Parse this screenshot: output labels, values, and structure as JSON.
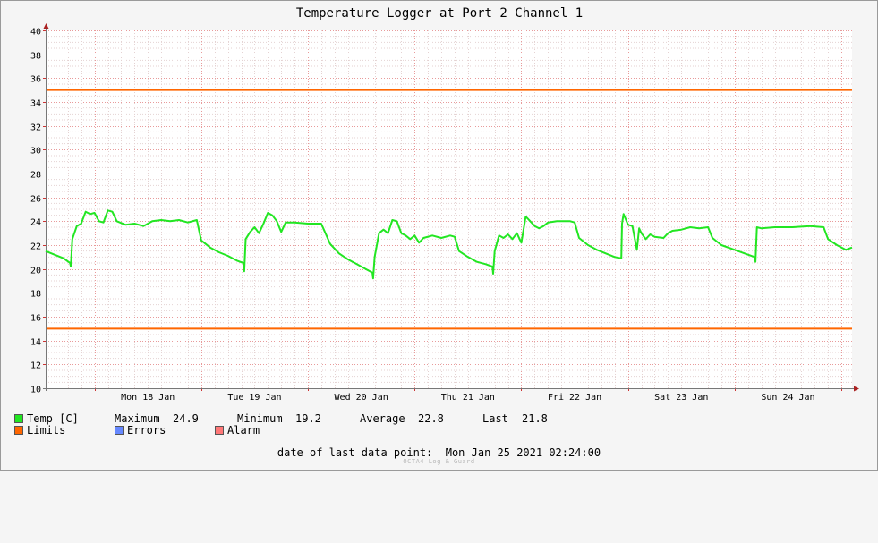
{
  "chart_data": {
    "type": "line",
    "title": "Temperature Logger at Port 2 Channel 1",
    "ylim": [
      10,
      40
    ],
    "yticks": [
      10,
      12,
      14,
      16,
      18,
      20,
      22,
      24,
      26,
      28,
      30,
      32,
      34,
      36,
      38,
      40
    ],
    "xlim": [
      "2021-01-17 13:00",
      "2021-01-25 02:24"
    ],
    "xticks": [
      {
        "label": "Mon 18 Jan",
        "t": "2021-01-18 12:00"
      },
      {
        "label": "Tue 19 Jan",
        "t": "2021-01-19 12:00"
      },
      {
        "label": "Wed 20 Jan",
        "t": "2021-01-20 12:00"
      },
      {
        "label": "Thu 21 Jan",
        "t": "2021-01-21 12:00"
      },
      {
        "label": "Fri 22 Jan",
        "t": "2021-01-22 12:00"
      },
      {
        "label": "Sat 23 Jan",
        "t": "2021-01-23 12:00"
      },
      {
        "label": "Sun 24 Jan",
        "t": "2021-01-24 12:00"
      }
    ],
    "grid": true,
    "limits": {
      "upper": 35,
      "lower": 15
    },
    "series": [
      {
        "name": "Temp [C]",
        "color": "#22e622",
        "points": [
          [
            "2021-01-17 13:00",
            21.5
          ],
          [
            "2021-01-17 15:00",
            21.2
          ],
          [
            "2021-01-17 17:00",
            20.9
          ],
          [
            "2021-01-17 18:30",
            20.5
          ],
          [
            "2021-01-17 18:40",
            20.2
          ],
          [
            "2021-01-17 19:00",
            22.5
          ],
          [
            "2021-01-17 20:00",
            23.6
          ],
          [
            "2021-01-17 21:00",
            23.8
          ],
          [
            "2021-01-17 22:00",
            24.8
          ],
          [
            "2021-01-17 23:00",
            24.6
          ],
          [
            "2021-01-18 00:00",
            24.7
          ],
          [
            "2021-01-18 01:00",
            24.0
          ],
          [
            "2021-01-18 02:00",
            23.9
          ],
          [
            "2021-01-18 03:00",
            24.9
          ],
          [
            "2021-01-18 04:00",
            24.8
          ],
          [
            "2021-01-18 05:00",
            24.0
          ],
          [
            "2021-01-18 07:00",
            23.7
          ],
          [
            "2021-01-18 09:00",
            23.8
          ],
          [
            "2021-01-18 11:00",
            23.6
          ],
          [
            "2021-01-18 13:00",
            24.0
          ],
          [
            "2021-01-18 15:00",
            24.1
          ],
          [
            "2021-01-18 17:00",
            24.0
          ],
          [
            "2021-01-18 19:00",
            24.1
          ],
          [
            "2021-01-18 21:00",
            23.9
          ],
          [
            "2021-01-18 23:00",
            24.1
          ],
          [
            "2021-01-19 00:00",
            22.4
          ],
          [
            "2021-01-19 02:00",
            21.8
          ],
          [
            "2021-01-19 04:00",
            21.4
          ],
          [
            "2021-01-19 06:00",
            21.1
          ],
          [
            "2021-01-19 08:00",
            20.7
          ],
          [
            "2021-01-19 09:30",
            20.5
          ],
          [
            "2021-01-19 09:40",
            19.8
          ],
          [
            "2021-01-19 10:00",
            22.5
          ],
          [
            "2021-01-19 11:00",
            23.1
          ],
          [
            "2021-01-19 12:00",
            23.5
          ],
          [
            "2021-01-19 13:00",
            23.0
          ],
          [
            "2021-01-19 14:00",
            23.8
          ],
          [
            "2021-01-19 15:00",
            24.7
          ],
          [
            "2021-01-19 16:00",
            24.5
          ],
          [
            "2021-01-19 17:00",
            24.0
          ],
          [
            "2021-01-19 18:00",
            23.1
          ],
          [
            "2021-01-19 19:00",
            23.9
          ],
          [
            "2021-01-19 21:00",
            23.9
          ],
          [
            "2021-01-20 00:00",
            23.8
          ],
          [
            "2021-01-20 03:00",
            23.8
          ],
          [
            "2021-01-20 05:00",
            22.1
          ],
          [
            "2021-01-20 07:00",
            21.3
          ],
          [
            "2021-01-20 09:00",
            20.8
          ],
          [
            "2021-01-20 11:00",
            20.4
          ],
          [
            "2021-01-20 13:00",
            20.0
          ],
          [
            "2021-01-20 14:30",
            19.7
          ],
          [
            "2021-01-20 14:40",
            19.2
          ],
          [
            "2021-01-20 15:00",
            21.0
          ],
          [
            "2021-01-20 16:00",
            23.0
          ],
          [
            "2021-01-20 17:00",
            23.3
          ],
          [
            "2021-01-20 18:00",
            23.0
          ],
          [
            "2021-01-20 19:00",
            24.1
          ],
          [
            "2021-01-20 20:00",
            24.0
          ],
          [
            "2021-01-20 21:00",
            23.0
          ],
          [
            "2021-01-20 22:00",
            22.8
          ],
          [
            "2021-01-20 23:00",
            22.5
          ],
          [
            "2021-01-21 00:00",
            22.8
          ],
          [
            "2021-01-21 01:00",
            22.2
          ],
          [
            "2021-01-21 02:00",
            22.6
          ],
          [
            "2021-01-21 04:00",
            22.8
          ],
          [
            "2021-01-21 06:00",
            22.6
          ],
          [
            "2021-01-21 08:00",
            22.8
          ],
          [
            "2021-01-21 09:00",
            22.7
          ],
          [
            "2021-01-21 10:00",
            21.5
          ],
          [
            "2021-01-21 12:00",
            21.0
          ],
          [
            "2021-01-21 14:00",
            20.6
          ],
          [
            "2021-01-21 16:00",
            20.4
          ],
          [
            "2021-01-21 17:30",
            20.2
          ],
          [
            "2021-01-21 17:40",
            19.6
          ],
          [
            "2021-01-21 18:00",
            21.5
          ],
          [
            "2021-01-21 19:00",
            22.8
          ],
          [
            "2021-01-21 20:00",
            22.6
          ],
          [
            "2021-01-21 21:00",
            22.9
          ],
          [
            "2021-01-21 22:00",
            22.5
          ],
          [
            "2021-01-21 23:00",
            23.0
          ],
          [
            "2021-01-22 00:00",
            22.2
          ],
          [
            "2021-01-22 01:00",
            24.4
          ],
          [
            "2021-01-22 02:00",
            24.0
          ],
          [
            "2021-01-22 03:00",
            23.6
          ],
          [
            "2021-01-22 04:00",
            23.4
          ],
          [
            "2021-01-22 05:00",
            23.6
          ],
          [
            "2021-01-22 06:00",
            23.9
          ],
          [
            "2021-01-22 08:00",
            24.0
          ],
          [
            "2021-01-22 11:00",
            24.0
          ],
          [
            "2021-01-22 12:00",
            23.9
          ],
          [
            "2021-01-22 13:00",
            22.6
          ],
          [
            "2021-01-22 15:00",
            22.0
          ],
          [
            "2021-01-22 17:00",
            21.6
          ],
          [
            "2021-01-22 19:00",
            21.3
          ],
          [
            "2021-01-22 21:00",
            21.0
          ],
          [
            "2021-01-22 22:30",
            20.9
          ],
          [
            "2021-01-22 22:40",
            23.8
          ],
          [
            "2021-01-22 23:00",
            24.6
          ],
          [
            "2021-01-23 00:00",
            23.7
          ],
          [
            "2021-01-23 01:00",
            23.6
          ],
          [
            "2021-01-23 02:00",
            21.6
          ],
          [
            "2021-01-23 02:30",
            23.4
          ],
          [
            "2021-01-23 03:00",
            23.0
          ],
          [
            "2021-01-23 04:00",
            22.5
          ],
          [
            "2021-01-23 05:00",
            22.9
          ],
          [
            "2021-01-23 06:00",
            22.7
          ],
          [
            "2021-01-23 08:00",
            22.6
          ],
          [
            "2021-01-23 09:00",
            23.0
          ],
          [
            "2021-01-23 10:00",
            23.2
          ],
          [
            "2021-01-23 12:00",
            23.3
          ],
          [
            "2021-01-23 14:00",
            23.5
          ],
          [
            "2021-01-23 16:00",
            23.4
          ],
          [
            "2021-01-23 18:00",
            23.5
          ],
          [
            "2021-01-23 19:00",
            22.6
          ],
          [
            "2021-01-23 21:00",
            22.0
          ],
          [
            "2021-01-24 00:00",
            21.6
          ],
          [
            "2021-01-24 03:00",
            21.2
          ],
          [
            "2021-01-24 04:30",
            21.0
          ],
          [
            "2021-01-24 04:40",
            20.6
          ],
          [
            "2021-01-24 05:00",
            23.5
          ],
          [
            "2021-01-24 06:00",
            23.4
          ],
          [
            "2021-01-24 09:00",
            23.5
          ],
          [
            "2021-01-24 13:00",
            23.5
          ],
          [
            "2021-01-24 17:00",
            23.6
          ],
          [
            "2021-01-24 20:00",
            23.5
          ],
          [
            "2021-01-24 21:00",
            22.5
          ],
          [
            "2021-01-24 23:00",
            22.0
          ],
          [
            "2021-01-25 01:00",
            21.6
          ],
          [
            "2021-01-25 02:24",
            21.8
          ]
        ]
      }
    ]
  },
  "colors": {
    "temp": "#22e622",
    "limits": "#ff6600",
    "errors": "#6688ff",
    "alarm": "#ff7777",
    "grid_major": "#e89a9a",
    "grid_minor": "#e4d2d2"
  },
  "legend": {
    "temp_label": "Temp [C]",
    "limits_label": "Limits",
    "errors_label": "Errors",
    "alarm_label": "Alarm",
    "stats": {
      "maximum_label": "Maximum",
      "maximum_value": "24.9",
      "minimum_label": "Minimum",
      "minimum_value": "19.2",
      "average_label": "Average",
      "average_value": "22.8",
      "last_label": "Last",
      "last_value": "21.8"
    }
  },
  "footer": {
    "last_point_label": "date of last data point:",
    "last_point_value": "Mon Jan 25 2021 02:24:00",
    "watermark": "OCTA4 Log & Guard"
  }
}
